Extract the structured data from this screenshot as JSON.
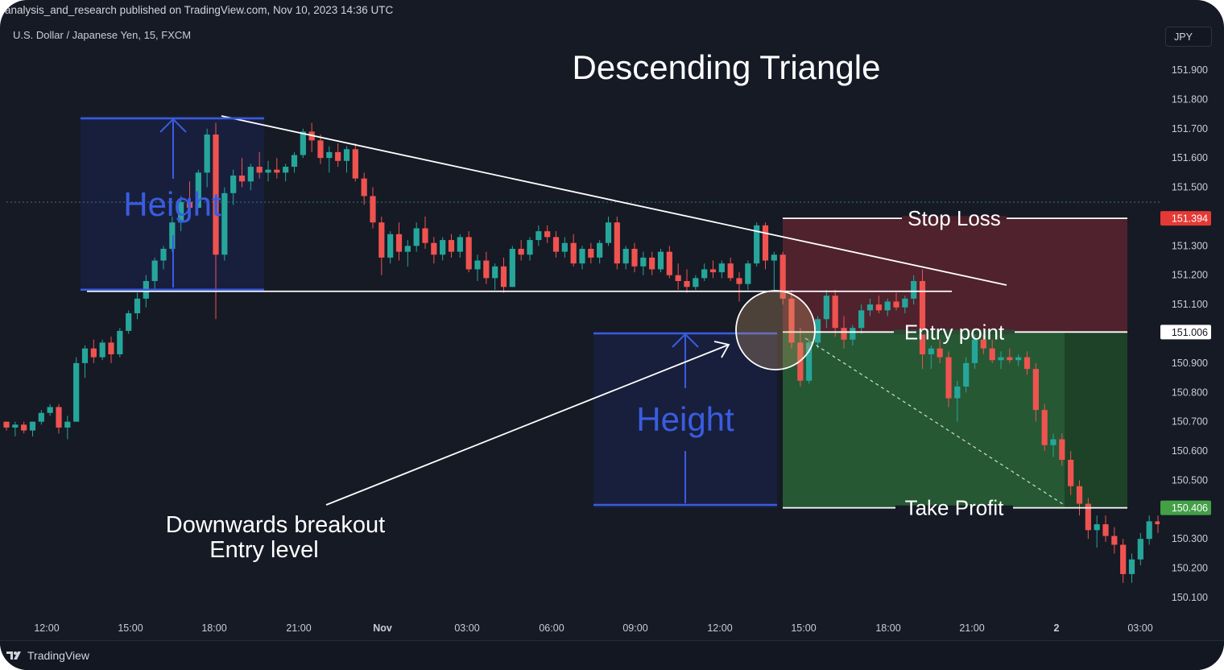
{
  "header": {
    "published": "analysis_and_research published on TradingView.com, Nov 10, 2023 14:36 UTC",
    "symbol": "U.S. Dollar / Japanese Yen, 15, FXCM",
    "currency_button": "JPY"
  },
  "footer": {
    "brand": "TradingView"
  },
  "colors": {
    "background": "#161a25",
    "up_candle": "#26a69a",
    "down_candle": "#ef5350",
    "height_blue": "#3a5ce0",
    "stop_zone": "#8a2a35",
    "profit_zone": "#2f7a3c",
    "stop_tag": "#e53935",
    "profit_tag": "#43a047"
  },
  "chart_data": {
    "type": "candlestick",
    "title": "Descending Triangle",
    "ylim": [
      150.05,
      151.97
    ],
    "yticks": [
      "151.900",
      "151.800",
      "151.700",
      "151.600",
      "151.500",
      "151.300",
      "151.200",
      "151.100",
      "150.900",
      "150.800",
      "150.700",
      "150.600",
      "150.500",
      "150.300",
      "150.200",
      "150.100"
    ],
    "xticks": [
      "12:00",
      "15:00",
      "18:00",
      "21:00",
      "Nov",
      "03:00",
      "06:00",
      "09:00",
      "12:00",
      "15:00",
      "18:00",
      "21:00",
      "2",
      "03:00"
    ],
    "price_tags": [
      {
        "label": "151.394",
        "value": 151.394,
        "kind": "stop"
      },
      {
        "label": "151.006",
        "value": 151.006,
        "kind": "entry"
      },
      {
        "label": "150.406",
        "value": 150.406,
        "kind": "profit"
      }
    ],
    "levels": {
      "stop_loss": 151.394,
      "entry": 151.006,
      "take_profit": 150.406,
      "support": 151.145,
      "pattern_top": 151.74
    },
    "annotations": {
      "stop_loss": "Stop Loss",
      "entry_point": "Entry point",
      "take_profit": "Take Profit",
      "height_left": "Height",
      "height_right": "Height",
      "breakout_line1": "Downwards breakout",
      "breakout_line2": "Entry level"
    },
    "candles": [
      [
        150.7,
        150.7,
        150.67,
        150.68
      ],
      [
        150.68,
        150.7,
        150.65,
        150.69
      ],
      [
        150.69,
        150.7,
        150.66,
        150.67
      ],
      [
        150.67,
        150.7,
        150.65,
        150.7
      ],
      [
        150.7,
        150.74,
        150.69,
        150.73
      ],
      [
        150.73,
        150.76,
        150.72,
        150.75
      ],
      [
        150.75,
        150.76,
        150.66,
        150.68
      ],
      [
        150.68,
        150.72,
        150.64,
        150.7
      ],
      [
        150.7,
        150.92,
        150.7,
        150.9
      ],
      [
        150.9,
        150.96,
        150.85,
        150.95
      ],
      [
        150.95,
        150.98,
        150.9,
        150.92
      ],
      [
        150.92,
        150.98,
        150.91,
        150.97
      ],
      [
        150.97,
        150.99,
        150.9,
        150.93
      ],
      [
        150.93,
        151.02,
        150.92,
        151.01
      ],
      [
        151.01,
        151.08,
        151.0,
        151.07
      ],
      [
        151.07,
        151.14,
        151.05,
        151.12
      ],
      [
        151.12,
        151.2,
        151.09,
        151.18
      ],
      [
        151.18,
        151.26,
        151.15,
        151.25
      ],
      [
        151.25,
        151.3,
        151.22,
        151.29
      ],
      [
        151.29,
        151.4,
        151.28,
        151.38
      ],
      [
        151.38,
        151.47,
        151.35,
        151.45
      ],
      [
        151.45,
        151.52,
        151.4,
        151.43
      ],
      [
        151.43,
        151.56,
        151.43,
        151.55
      ],
      [
        151.55,
        151.7,
        151.5,
        151.68
      ],
      [
        151.68,
        151.72,
        151.05,
        151.27
      ],
      [
        151.27,
        151.5,
        151.25,
        151.48
      ],
      [
        151.48,
        151.56,
        151.44,
        151.54
      ],
      [
        151.54,
        151.6,
        151.5,
        151.52
      ],
      [
        151.52,
        151.58,
        151.49,
        151.57
      ],
      [
        151.57,
        151.62,
        151.53,
        151.55
      ],
      [
        151.55,
        151.59,
        151.52,
        151.56
      ],
      [
        151.56,
        151.6,
        151.53,
        151.55
      ],
      [
        151.55,
        151.58,
        151.52,
        151.57
      ],
      [
        151.57,
        151.62,
        151.55,
        151.61
      ],
      [
        151.61,
        151.7,
        151.6,
        151.69
      ],
      [
        151.69,
        151.72,
        151.62,
        151.66
      ],
      [
        151.66,
        151.68,
        151.58,
        151.6
      ],
      [
        151.6,
        151.64,
        151.55,
        151.62
      ],
      [
        151.62,
        151.65,
        151.57,
        151.59
      ],
      [
        151.59,
        151.64,
        151.55,
        151.63
      ],
      [
        151.63,
        151.65,
        151.52,
        151.53
      ],
      [
        151.53,
        151.55,
        151.44,
        151.47
      ],
      [
        151.47,
        151.5,
        151.36,
        151.38
      ],
      [
        151.38,
        151.4,
        151.2,
        151.26
      ],
      [
        151.26,
        151.35,
        151.24,
        151.34
      ],
      [
        151.34,
        151.38,
        151.25,
        151.28
      ],
      [
        151.28,
        151.32,
        151.23,
        151.3
      ],
      [
        151.3,
        151.38,
        151.28,
        151.36
      ],
      [
        151.36,
        151.4,
        151.29,
        151.31
      ],
      [
        151.31,
        151.33,
        151.24,
        151.27
      ],
      [
        151.27,
        151.33,
        151.25,
        151.32
      ],
      [
        151.32,
        151.34,
        151.26,
        151.28
      ],
      [
        151.28,
        151.34,
        151.26,
        151.33
      ],
      [
        151.33,
        151.35,
        151.21,
        151.22
      ],
      [
        151.22,
        151.27,
        151.18,
        151.25
      ],
      [
        151.25,
        151.28,
        151.17,
        151.19
      ],
      [
        151.19,
        151.24,
        151.15,
        151.23
      ],
      [
        151.23,
        151.26,
        151.14,
        151.16
      ],
      [
        151.16,
        151.3,
        151.16,
        151.29
      ],
      [
        151.29,
        151.32,
        151.25,
        151.27
      ],
      [
        151.27,
        151.33,
        151.25,
        151.32
      ],
      [
        151.32,
        151.37,
        151.3,
        151.35
      ],
      [
        151.35,
        151.37,
        151.31,
        151.33
      ],
      [
        151.33,
        151.35,
        151.26,
        151.28
      ],
      [
        151.28,
        151.33,
        151.26,
        151.31
      ],
      [
        151.31,
        151.34,
        151.23,
        151.24
      ],
      [
        151.24,
        151.3,
        151.22,
        151.29
      ],
      [
        151.29,
        151.31,
        151.24,
        151.26
      ],
      [
        151.26,
        151.32,
        151.24,
        151.31
      ],
      [
        151.31,
        151.4,
        151.3,
        151.38
      ],
      [
        151.38,
        151.4,
        151.22,
        151.24
      ],
      [
        151.24,
        151.3,
        151.22,
        151.29
      ],
      [
        151.29,
        151.31,
        151.21,
        151.23
      ],
      [
        151.23,
        151.28,
        151.2,
        151.26
      ],
      [
        151.26,
        151.28,
        151.2,
        151.22
      ],
      [
        151.22,
        151.29,
        151.21,
        151.28
      ],
      [
        151.28,
        151.3,
        151.19,
        151.2
      ],
      [
        151.2,
        151.24,
        151.15,
        151.18
      ],
      [
        151.18,
        151.22,
        151.14,
        151.16
      ],
      [
        151.16,
        151.2,
        151.15,
        151.19
      ],
      [
        151.19,
        151.24,
        151.18,
        151.22
      ],
      [
        151.22,
        151.25,
        151.19,
        151.21
      ],
      [
        151.21,
        151.25,
        151.19,
        151.24
      ],
      [
        151.24,
        151.26,
        151.18,
        151.19
      ],
      [
        151.19,
        151.21,
        151.11,
        151.17
      ],
      [
        151.17,
        151.25,
        151.15,
        151.24
      ],
      [
        151.24,
        151.38,
        151.23,
        151.37
      ],
      [
        151.37,
        151.38,
        151.22,
        151.25
      ],
      [
        151.25,
        151.28,
        151.15,
        151.27
      ],
      [
        151.27,
        151.28,
        151.1,
        151.12
      ],
      [
        151.12,
        151.15,
        150.95,
        150.97
      ],
      [
        150.97,
        151.02,
        150.82,
        150.84
      ],
      [
        150.84,
        150.98,
        150.83,
        150.97
      ],
      [
        150.97,
        151.06,
        150.95,
        151.05
      ],
      [
        151.05,
        151.15,
        151.02,
        151.13
      ],
      [
        151.13,
        151.15,
        150.99,
        151.02
      ],
      [
        151.02,
        151.06,
        150.95,
        150.98
      ],
      [
        150.98,
        151.03,
        150.96,
        151.02
      ],
      [
        151.02,
        151.1,
        151.0,
        151.08
      ],
      [
        151.08,
        151.12,
        151.06,
        151.1
      ],
      [
        151.1,
        151.13,
        151.07,
        151.08
      ],
      [
        151.08,
        151.12,
        151.06,
        151.11
      ],
      [
        151.11,
        151.14,
        151.08,
        151.09
      ],
      [
        151.09,
        151.13,
        151.07,
        151.12
      ],
      [
        151.12,
        151.2,
        151.1,
        151.18
      ],
      [
        151.18,
        151.22,
        150.88,
        150.93
      ],
      [
        150.93,
        150.96,
        150.88,
        150.95
      ],
      [
        150.95,
        150.98,
        150.9,
        150.92
      ],
      [
        150.92,
        150.94,
        150.75,
        150.78
      ],
      [
        150.78,
        150.84,
        150.7,
        150.82
      ],
      [
        150.82,
        150.92,
        150.8,
        150.9
      ],
      [
        150.9,
        151.0,
        150.88,
        150.98
      ],
      [
        150.98,
        151.02,
        150.93,
        150.95
      ],
      [
        150.95,
        150.98,
        150.9,
        150.91
      ],
      [
        150.91,
        150.94,
        150.88,
        150.92
      ],
      [
        150.92,
        150.95,
        150.9,
        150.91
      ],
      [
        150.91,
        150.93,
        150.89,
        150.92
      ],
      [
        150.92,
        150.94,
        150.86,
        150.88
      ],
      [
        150.88,
        150.9,
        150.7,
        150.74
      ],
      [
        150.74,
        150.76,
        150.6,
        150.62
      ],
      [
        150.62,
        150.66,
        150.58,
        150.64
      ],
      [
        150.64,
        150.66,
        150.55,
        150.57
      ],
      [
        150.57,
        150.6,
        150.45,
        150.48
      ],
      [
        150.48,
        150.5,
        150.38,
        150.42
      ],
      [
        150.42,
        150.44,
        150.3,
        150.33
      ],
      [
        150.33,
        150.38,
        150.27,
        150.35
      ],
      [
        150.35,
        150.38,
        150.29,
        150.31
      ],
      [
        150.31,
        150.34,
        150.25,
        150.28
      ],
      [
        150.28,
        150.3,
        150.15,
        150.18
      ],
      [
        150.18,
        150.25,
        150.15,
        150.23
      ],
      [
        150.23,
        150.32,
        150.21,
        150.3
      ],
      [
        150.3,
        150.38,
        150.28,
        150.36
      ],
      [
        150.36,
        150.38,
        150.32,
        150.35
      ]
    ]
  }
}
